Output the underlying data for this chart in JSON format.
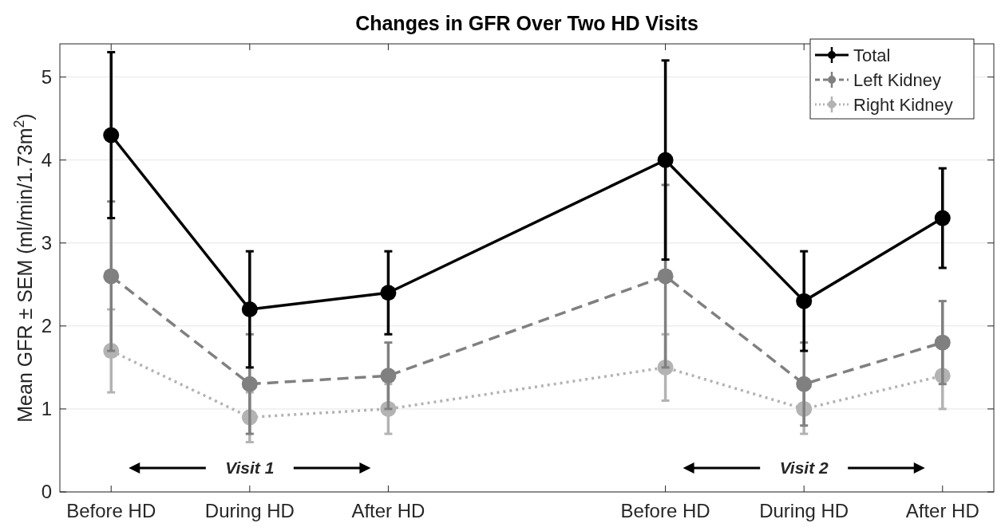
{
  "chart_data": {
    "type": "line",
    "title": "Changes in GFR Over Two HD Visits",
    "ylabel": "Mean GFR ± SEM (ml/min/1.73m$^{2}$)",
    "categories": [
      "Before HD",
      "During HD",
      "After HD",
      null,
      "Before HD",
      "During HD",
      "After HD"
    ],
    "ylim": [
      0,
      5.4
    ],
    "yticks": [
      0,
      1,
      2,
      3,
      4,
      5
    ],
    "grid": "y",
    "legend": "top right",
    "marker": "circle",
    "series": [
      {
        "name": "Total",
        "color": "#000000",
        "line_style": "solid",
        "values": [
          4.3,
          2.2,
          2.4,
          null,
          4.0,
          2.3,
          3.3
        ],
        "errors": [
          1.0,
          0.7,
          0.5,
          null,
          1.2,
          0.6,
          0.6
        ]
      },
      {
        "name": "Left Kidney",
        "color": "#808080",
        "line_style": "dashed",
        "values": [
          2.6,
          1.3,
          1.4,
          null,
          2.6,
          1.3,
          1.8
        ],
        "errors": [
          0.9,
          0.6,
          0.4,
          null,
          1.1,
          0.5,
          0.5
        ]
      },
      {
        "name": "Right Kidney",
        "color": "#b3b3b3",
        "line_style": "dotted",
        "values": [
          1.7,
          0.9,
          1.0,
          null,
          1.5,
          1.0,
          1.4
        ],
        "errors": [
          0.5,
          0.3,
          0.3,
          null,
          0.4,
          0.3,
          0.4
        ]
      }
    ],
    "annotations": [
      "Visit 1",
      "Visit 2"
    ]
  }
}
